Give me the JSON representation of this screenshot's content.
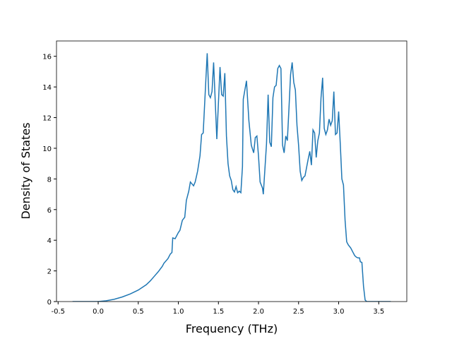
{
  "chart_data": {
    "type": "line",
    "x_label": "Frequency (THz)",
    "y_label": "Density of States",
    "xlim": [
      -0.52,
      3.85
    ],
    "ylim": [
      0,
      17
    ],
    "xticks": [
      -0.5,
      {
        "value": 0,
        "label": "0.0"
      },
      0.5,
      {
        "value": 1,
        "label": "1.0"
      },
      1.5,
      {
        "value": 2,
        "label": "2.0"
      },
      2.5,
      {
        "value": 3,
        "label": "3.0"
      },
      3.5
    ],
    "yticks": [
      0,
      2,
      4,
      6,
      8,
      10,
      12,
      14,
      16
    ],
    "series": [
      {
        "color": "#1f77b4",
        "x": [
          -0.32,
          0.0,
          0.1,
          0.2,
          0.3,
          0.4,
          0.5,
          0.6,
          0.65,
          0.7,
          0.75,
          0.8,
          0.82,
          0.87,
          0.9,
          0.92,
          0.93,
          0.96,
          1.0,
          1.02,
          1.05,
          1.08,
          1.1,
          1.13,
          1.15,
          1.19,
          1.21,
          1.24,
          1.27,
          1.29,
          1.31,
          1.36,
          1.38,
          1.4,
          1.42,
          1.44,
          1.48,
          1.52,
          1.54,
          1.56,
          1.58,
          1.6,
          1.62,
          1.64,
          1.66,
          1.68,
          1.7,
          1.72,
          1.74,
          1.76,
          1.78,
          1.8,
          1.81,
          1.85,
          1.88,
          1.91,
          1.94,
          1.96,
          1.98,
          2.0,
          2.02,
          2.05,
          2.06,
          2.1,
          2.12,
          2.14,
          2.16,
          2.18,
          2.2,
          2.22,
          2.24,
          2.26,
          2.28,
          2.3,
          2.32,
          2.34,
          2.36,
          2.38,
          2.4,
          2.42,
          2.44,
          2.46,
          2.48,
          2.5,
          2.52,
          2.54,
          2.56,
          2.58,
          2.62,
          2.64,
          2.66,
          2.68,
          2.7,
          2.72,
          2.74,
          2.76,
          2.78,
          2.8,
          2.82,
          2.84,
          2.86,
          2.88,
          2.9,
          2.92,
          2.94,
          2.96,
          2.98,
          3.0,
          3.02,
          3.04,
          3.06,
          3.08,
          3.1,
          3.12,
          3.15,
          3.18,
          3.2,
          3.22,
          3.24,
          3.26,
          3.27,
          3.29,
          3.31,
          3.33,
          3.35,
          3.65
        ],
        "values": [
          0,
          0,
          0.05,
          0.15,
          0.3,
          0.5,
          0.75,
          1.1,
          1.35,
          1.65,
          1.95,
          2.3,
          2.5,
          2.8,
          3.1,
          3.2,
          4.15,
          4.1,
          4.5,
          4.65,
          5.3,
          5.5,
          6.6,
          7.2,
          7.8,
          7.55,
          7.8,
          8.5,
          9.5,
          10.9,
          11.0,
          16.2,
          13.5,
          13.3,
          13.7,
          15.6,
          10.6,
          15.3,
          13.5,
          13.4,
          14.9,
          10.8,
          9.0,
          8.2,
          7.9,
          7.3,
          7.15,
          7.5,
          7.1,
          7.2,
          7.1,
          8.8,
          13.2,
          14.4,
          11.8,
          10.2,
          9.7,
          10.7,
          10.8,
          9.5,
          7.8,
          7.4,
          7.0,
          10.3,
          13.5,
          10.4,
          10.1,
          13.3,
          14.0,
          14.1,
          15.2,
          15.4,
          15.2,
          10.2,
          9.7,
          10.8,
          10.5,
          12.6,
          14.8,
          15.6,
          14.3,
          13.8,
          11.5,
          10.2,
          8.5,
          7.9,
          8.1,
          8.2,
          9.3,
          9.8,
          8.9,
          11.2,
          11.0,
          9.4,
          10.5,
          11.0,
          13.3,
          14.6,
          11.3,
          10.9,
          11.2,
          11.9,
          11.5,
          11.8,
          13.7,
          10.9,
          11.0,
          12.4,
          10.3,
          8.0,
          7.6,
          5.3,
          3.9,
          3.7,
          3.5,
          3.2,
          3.0,
          2.9,
          2.85,
          2.85,
          2.6,
          2.55,
          1.0,
          0.1,
          0,
          0
        ]
      }
    ]
  }
}
